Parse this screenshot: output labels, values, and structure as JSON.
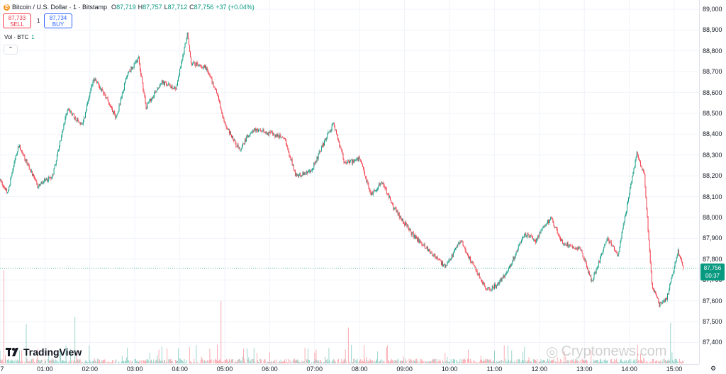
{
  "header": {
    "coin_icon_glyph": "₿",
    "title": "Bitcoin / U.S. Dollar · 1 · Bitstamp",
    "open_label": "O",
    "open": "87,719",
    "high_label": "H",
    "high": "87,757",
    "low_label": "L",
    "low": "87,712",
    "close_label": "C",
    "close": "87,756",
    "change": "+37 (+0.04%)"
  },
  "trade": {
    "sell_price": "87,733",
    "sell_label": "SELL",
    "spread": "1",
    "buy_price": "87,734",
    "buy_label": "BUY"
  },
  "volume": {
    "label": "Vol · BTC",
    "value": "1"
  },
  "collapse_glyph": "⌃",
  "logo_text": "TradingView",
  "watermark_text": "Cryptonews.com",
  "watermark_glyph": "◎",
  "last_price": {
    "price": "87,756",
    "countdown": "00:37"
  },
  "settings_glyph": "⚙",
  "price_ticks": [
    "89,000",
    "88,900",
    "88,800",
    "88,700",
    "88,600",
    "88,500",
    "88,400",
    "88,300",
    "88,200",
    "88,100",
    "88,000",
    "87,900",
    "87,800",
    "87,700",
    "87,600",
    "87,500",
    "87,400"
  ],
  "time_ticks": [
    "7",
    "01:00",
    "02:00",
    "03:00",
    "04:00",
    "05:00",
    "06:00",
    "07:00",
    "08:00",
    "09:00",
    "10:00",
    "11:00",
    "12:00",
    "13:00",
    "14:00",
    "15:00"
  ],
  "colors": {
    "up": "#089981",
    "down": "#f23645",
    "grid": "#f0f3fa",
    "axis": "#e0e3eb"
  },
  "chart_data": {
    "type": "candlestick",
    "interval_minutes": 1,
    "ylim": [
      87400,
      89000
    ],
    "key_points": [
      {
        "time": "00:00",
        "price": 88180
      },
      {
        "time": "00:10",
        "price": 88120
      },
      {
        "time": "00:25",
        "price": 88350
      },
      {
        "time": "00:50",
        "price": 88150
      },
      {
        "time": "01:10",
        "price": 88200
      },
      {
        "time": "01:30",
        "price": 88520
      },
      {
        "time": "01:50",
        "price": 88440
      },
      {
        "time": "02:05",
        "price": 88670
      },
      {
        "time": "02:20",
        "price": 88590
      },
      {
        "time": "02:35",
        "price": 88480
      },
      {
        "time": "02:50",
        "price": 88690
      },
      {
        "time": "03:05",
        "price": 88760
      },
      {
        "time": "03:15",
        "price": 88530
      },
      {
        "time": "03:35",
        "price": 88650
      },
      {
        "time": "03:55",
        "price": 88620
      },
      {
        "time": "04:10",
        "price": 88880
      },
      {
        "time": "04:15",
        "price": 88740
      },
      {
        "time": "04:35",
        "price": 88720
      },
      {
        "time": "04:50",
        "price": 88590
      },
      {
        "time": "05:00",
        "price": 88450
      },
      {
        "time": "05:20",
        "price": 88320
      },
      {
        "time": "05:35",
        "price": 88420
      },
      {
        "time": "05:55",
        "price": 88410
      },
      {
        "time": "06:20",
        "price": 88380
      },
      {
        "time": "06:35",
        "price": 88200
      },
      {
        "time": "06:55",
        "price": 88220
      },
      {
        "time": "07:15",
        "price": 88380
      },
      {
        "time": "07:25",
        "price": 88450
      },
      {
        "time": "07:40",
        "price": 88260
      },
      {
        "time": "08:00",
        "price": 88280
      },
      {
        "time": "08:15",
        "price": 88110
      },
      {
        "time": "08:30",
        "price": 88170
      },
      {
        "time": "08:45",
        "price": 88050
      },
      {
        "time": "09:10",
        "price": 87920
      },
      {
        "time": "09:30",
        "price": 87850
      },
      {
        "time": "09:55",
        "price": 87760
      },
      {
        "time": "10:15",
        "price": 87890
      },
      {
        "time": "10:30",
        "price": 87780
      },
      {
        "time": "10:50",
        "price": 87650
      },
      {
        "time": "11:05",
        "price": 87680
      },
      {
        "time": "11:20",
        "price": 87760
      },
      {
        "time": "11:40",
        "price": 87920
      },
      {
        "time": "11:55",
        "price": 87890
      },
      {
        "time": "12:15",
        "price": 88000
      },
      {
        "time": "12:30",
        "price": 87880
      },
      {
        "time": "12:55",
        "price": 87850
      },
      {
        "time": "13:10",
        "price": 87690
      },
      {
        "time": "13:30",
        "price": 87900
      },
      {
        "time": "13:45",
        "price": 87820
      },
      {
        "time": "14:10",
        "price": 88310
      },
      {
        "time": "14:20",
        "price": 88210
      },
      {
        "time": "14:30",
        "price": 87680
      },
      {
        "time": "14:40",
        "price": 87580
      },
      {
        "time": "14:50",
        "price": 87610
      },
      {
        "time": "15:05",
        "price": 87840
      },
      {
        "time": "15:12",
        "price": 87756
      }
    ],
    "volume_spikes": [
      {
        "time": "00:05",
        "btc": 60
      },
      {
        "time": "00:35",
        "btc": 25
      },
      {
        "time": "01:40",
        "btc": 30
      },
      {
        "time": "04:55",
        "btc": 40
      },
      {
        "time": "07:45",
        "btc": 23
      },
      {
        "time": "14:55",
        "btc": 26
      }
    ]
  }
}
